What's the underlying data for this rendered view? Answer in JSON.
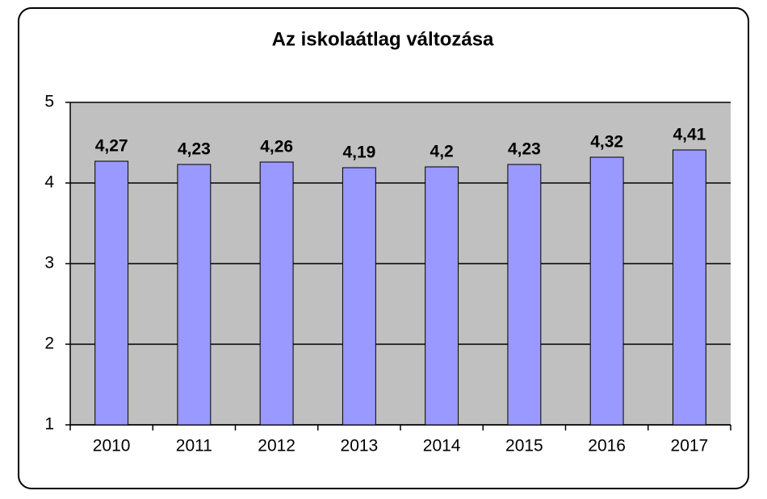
{
  "chart_data": {
    "type": "bar",
    "title": "Az iskolaátlag változása",
    "categories": [
      "2010",
      "2011",
      "2012",
      "2013",
      "2014",
      "2015",
      "2016",
      "2017"
    ],
    "values": [
      4.27,
      4.23,
      4.26,
      4.19,
      4.2,
      4.23,
      4.32,
      4.41
    ],
    "value_labels": [
      "4,27",
      "4,23",
      "4,26",
      "4,19",
      "4,2",
      "4,23",
      "4,32",
      "4,41"
    ],
    "color": "#9999ff",
    "ylim": [
      1,
      5
    ],
    "yticks": [
      1,
      2,
      3,
      4,
      5
    ],
    "grid": true
  }
}
